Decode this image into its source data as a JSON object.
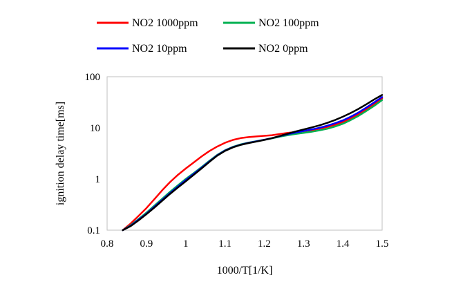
{
  "chart_data": {
    "type": "line",
    "title": "",
    "xlabel": "1000/T[1/K]",
    "ylabel": "ignition delay time[ms]",
    "xlim": [
      0.8,
      1.5
    ],
    "ylim": [
      0.1,
      100
    ],
    "yscale": "log",
    "grid": false,
    "legend": "top",
    "xticks": [
      "0.8",
      "0.9",
      "1",
      "1.1",
      "1.2",
      "1.3",
      "1.4",
      "1.5"
    ],
    "yticks": [
      "0.1",
      "1",
      "10",
      "100"
    ],
    "series": [
      {
        "name": "NO2 1000ppm",
        "color": "#ff0000",
        "x": [
          0.84,
          0.86,
          0.88,
          0.9,
          0.92,
          0.94,
          0.96,
          0.98,
          1.0,
          1.02,
          1.04,
          1.06,
          1.08,
          1.1,
          1.12,
          1.14,
          1.16,
          1.18,
          1.2,
          1.22,
          1.24,
          1.26,
          1.28,
          1.3,
          1.32,
          1.34,
          1.36,
          1.38,
          1.4,
          1.42,
          1.44,
          1.46,
          1.48,
          1.5
        ],
        "y": [
          0.1,
          0.135,
          0.19,
          0.27,
          0.4,
          0.6,
          0.87,
          1.2,
          1.6,
          2.1,
          2.75,
          3.5,
          4.3,
          5.1,
          5.8,
          6.3,
          6.6,
          6.8,
          7.0,
          7.2,
          7.6,
          8.0,
          8.3,
          8.6,
          9.0,
          9.6,
          10.4,
          11.5,
          13.0,
          15.3,
          18.5,
          23.0,
          29.0,
          38.0
        ]
      },
      {
        "name": "NO2 100ppm",
        "color": "#00b050",
        "x": [
          0.84,
          0.86,
          0.88,
          0.9,
          0.92,
          0.94,
          0.96,
          0.98,
          1.0,
          1.02,
          1.04,
          1.06,
          1.08,
          1.1,
          1.12,
          1.14,
          1.16,
          1.18,
          1.2,
          1.22,
          1.24,
          1.26,
          1.28,
          1.3,
          1.32,
          1.34,
          1.36,
          1.38,
          1.4,
          1.42,
          1.44,
          1.46,
          1.48,
          1.5
        ],
        "y": [
          0.1,
          0.125,
          0.165,
          0.22,
          0.3,
          0.41,
          0.56,
          0.75,
          1.0,
          1.3,
          1.7,
          2.25,
          2.95,
          3.65,
          4.25,
          4.75,
          5.15,
          5.5,
          5.85,
          6.25,
          6.75,
          7.2,
          7.6,
          8.0,
          8.4,
          8.9,
          9.6,
          10.6,
          12.0,
          14.2,
          17.2,
          21.5,
          27.0,
          35.0
        ]
      },
      {
        "name": "NO2 10ppm",
        "color": "#0000ff",
        "x": [
          0.84,
          0.86,
          0.88,
          0.9,
          0.92,
          0.94,
          0.96,
          0.98,
          1.0,
          1.02,
          1.04,
          1.06,
          1.08,
          1.1,
          1.12,
          1.14,
          1.16,
          1.18,
          1.2,
          1.22,
          1.24,
          1.26,
          1.28,
          1.3,
          1.32,
          1.34,
          1.36,
          1.38,
          1.4,
          1.42,
          1.44,
          1.46,
          1.48,
          1.5
        ],
        "y": [
          0.1,
          0.122,
          0.16,
          0.21,
          0.285,
          0.39,
          0.53,
          0.71,
          0.95,
          1.25,
          1.65,
          2.2,
          2.9,
          3.6,
          4.2,
          4.7,
          5.1,
          5.45,
          5.85,
          6.3,
          6.9,
          7.5,
          8.1,
          8.7,
          9.3,
          10.0,
          11.0,
          12.3,
          14.0,
          16.5,
          20.0,
          25.0,
          31.5,
          40.0
        ]
      },
      {
        "name": "NO2 0ppm",
        "color": "#000000",
        "x": [
          0.84,
          0.86,
          0.88,
          0.9,
          0.92,
          0.94,
          0.96,
          0.98,
          1.0,
          1.02,
          1.04,
          1.06,
          1.08,
          1.1,
          1.12,
          1.14,
          1.16,
          1.18,
          1.2,
          1.22,
          1.24,
          1.26,
          1.28,
          1.3,
          1.32,
          1.34,
          1.36,
          1.38,
          1.4,
          1.42,
          1.44,
          1.46,
          1.48,
          1.5
        ],
        "y": [
          0.1,
          0.12,
          0.155,
          0.205,
          0.275,
          0.375,
          0.51,
          0.68,
          0.9,
          1.2,
          1.6,
          2.15,
          2.85,
          3.55,
          4.15,
          4.65,
          5.05,
          5.4,
          5.8,
          6.3,
          6.95,
          7.7,
          8.5,
          9.3,
          10.2,
          11.2,
          12.5,
          14.2,
          16.5,
          19.5,
          23.5,
          29.0,
          36.0,
          44.0
        ]
      }
    ]
  }
}
